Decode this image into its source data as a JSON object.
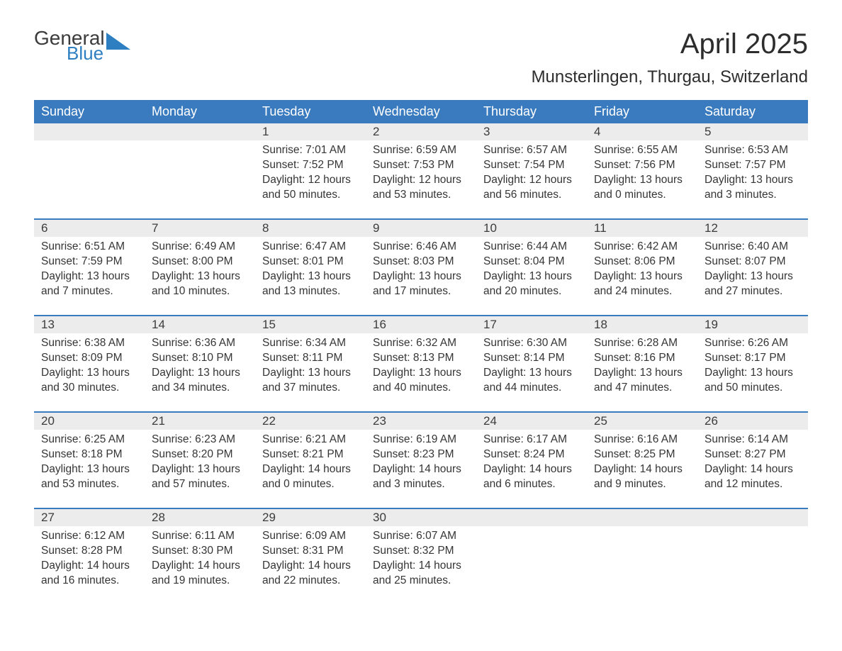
{
  "logo": {
    "word1": "General",
    "word2": "Blue",
    "accent": "#2d7fc1",
    "shape_color": "#2d7fc1"
  },
  "header": {
    "title": "April 2025",
    "location": "Munsterlingen, Thurgau, Switzerland"
  },
  "styling": {
    "header_bg": "#3a7bbf",
    "header_text": "#ffffff",
    "daynum_bg": "#ececec",
    "separator_color": "#3a7bbf",
    "body_text": "#2d2d2d",
    "page_bg": "#ffffff",
    "title_fontsize": 40,
    "location_fontsize": 24,
    "dow_fontsize": 18,
    "cell_fontsize": 15.5
  },
  "days_of_week": [
    "Sunday",
    "Monday",
    "Tuesday",
    "Wednesday",
    "Thursday",
    "Friday",
    "Saturday"
  ],
  "weeks": [
    [
      {
        "num": "",
        "lines": []
      },
      {
        "num": "",
        "lines": []
      },
      {
        "num": "1",
        "lines": [
          "Sunrise: 7:01 AM",
          "Sunset: 7:52 PM",
          "Daylight: 12 hours and 50 minutes."
        ]
      },
      {
        "num": "2",
        "lines": [
          "Sunrise: 6:59 AM",
          "Sunset: 7:53 PM",
          "Daylight: 12 hours and 53 minutes."
        ]
      },
      {
        "num": "3",
        "lines": [
          "Sunrise: 6:57 AM",
          "Sunset: 7:54 PM",
          "Daylight: 12 hours and 56 minutes."
        ]
      },
      {
        "num": "4",
        "lines": [
          "Sunrise: 6:55 AM",
          "Sunset: 7:56 PM",
          "Daylight: 13 hours and 0 minutes."
        ]
      },
      {
        "num": "5",
        "lines": [
          "Sunrise: 6:53 AM",
          "Sunset: 7:57 PM",
          "Daylight: 13 hours and 3 minutes."
        ]
      }
    ],
    [
      {
        "num": "6",
        "lines": [
          "Sunrise: 6:51 AM",
          "Sunset: 7:59 PM",
          "Daylight: 13 hours and 7 minutes."
        ]
      },
      {
        "num": "7",
        "lines": [
          "Sunrise: 6:49 AM",
          "Sunset: 8:00 PM",
          "Daylight: 13 hours and 10 minutes."
        ]
      },
      {
        "num": "8",
        "lines": [
          "Sunrise: 6:47 AM",
          "Sunset: 8:01 PM",
          "Daylight: 13 hours and 13 minutes."
        ]
      },
      {
        "num": "9",
        "lines": [
          "Sunrise: 6:46 AM",
          "Sunset: 8:03 PM",
          "Daylight: 13 hours and 17 minutes."
        ]
      },
      {
        "num": "10",
        "lines": [
          "Sunrise: 6:44 AM",
          "Sunset: 8:04 PM",
          "Daylight: 13 hours and 20 minutes."
        ]
      },
      {
        "num": "11",
        "lines": [
          "Sunrise: 6:42 AM",
          "Sunset: 8:06 PM",
          "Daylight: 13 hours and 24 minutes."
        ]
      },
      {
        "num": "12",
        "lines": [
          "Sunrise: 6:40 AM",
          "Sunset: 8:07 PM",
          "Daylight: 13 hours and 27 minutes."
        ]
      }
    ],
    [
      {
        "num": "13",
        "lines": [
          "Sunrise: 6:38 AM",
          "Sunset: 8:09 PM",
          "Daylight: 13 hours and 30 minutes."
        ]
      },
      {
        "num": "14",
        "lines": [
          "Sunrise: 6:36 AM",
          "Sunset: 8:10 PM",
          "Daylight: 13 hours and 34 minutes."
        ]
      },
      {
        "num": "15",
        "lines": [
          "Sunrise: 6:34 AM",
          "Sunset: 8:11 PM",
          "Daylight: 13 hours and 37 minutes."
        ]
      },
      {
        "num": "16",
        "lines": [
          "Sunrise: 6:32 AM",
          "Sunset: 8:13 PM",
          "Daylight: 13 hours and 40 minutes."
        ]
      },
      {
        "num": "17",
        "lines": [
          "Sunrise: 6:30 AM",
          "Sunset: 8:14 PM",
          "Daylight: 13 hours and 44 minutes."
        ]
      },
      {
        "num": "18",
        "lines": [
          "Sunrise: 6:28 AM",
          "Sunset: 8:16 PM",
          "Daylight: 13 hours and 47 minutes."
        ]
      },
      {
        "num": "19",
        "lines": [
          "Sunrise: 6:26 AM",
          "Sunset: 8:17 PM",
          "Daylight: 13 hours and 50 minutes."
        ]
      }
    ],
    [
      {
        "num": "20",
        "lines": [
          "Sunrise: 6:25 AM",
          "Sunset: 8:18 PM",
          "Daylight: 13 hours and 53 minutes."
        ]
      },
      {
        "num": "21",
        "lines": [
          "Sunrise: 6:23 AM",
          "Sunset: 8:20 PM",
          "Daylight: 13 hours and 57 minutes."
        ]
      },
      {
        "num": "22",
        "lines": [
          "Sunrise: 6:21 AM",
          "Sunset: 8:21 PM",
          "Daylight: 14 hours and 0 minutes."
        ]
      },
      {
        "num": "23",
        "lines": [
          "Sunrise: 6:19 AM",
          "Sunset: 8:23 PM",
          "Daylight: 14 hours and 3 minutes."
        ]
      },
      {
        "num": "24",
        "lines": [
          "Sunrise: 6:17 AM",
          "Sunset: 8:24 PM",
          "Daylight: 14 hours and 6 minutes."
        ]
      },
      {
        "num": "25",
        "lines": [
          "Sunrise: 6:16 AM",
          "Sunset: 8:25 PM",
          "Daylight: 14 hours and 9 minutes."
        ]
      },
      {
        "num": "26",
        "lines": [
          "Sunrise: 6:14 AM",
          "Sunset: 8:27 PM",
          "Daylight: 14 hours and 12 minutes."
        ]
      }
    ],
    [
      {
        "num": "27",
        "lines": [
          "Sunrise: 6:12 AM",
          "Sunset: 8:28 PM",
          "Daylight: 14 hours and 16 minutes."
        ]
      },
      {
        "num": "28",
        "lines": [
          "Sunrise: 6:11 AM",
          "Sunset: 8:30 PM",
          "Daylight: 14 hours and 19 minutes."
        ]
      },
      {
        "num": "29",
        "lines": [
          "Sunrise: 6:09 AM",
          "Sunset: 8:31 PM",
          "Daylight: 14 hours and 22 minutes."
        ]
      },
      {
        "num": "30",
        "lines": [
          "Sunrise: 6:07 AM",
          "Sunset: 8:32 PM",
          "Daylight: 14 hours and 25 minutes."
        ]
      },
      {
        "num": "",
        "lines": []
      },
      {
        "num": "",
        "lines": []
      },
      {
        "num": "",
        "lines": []
      }
    ]
  ]
}
